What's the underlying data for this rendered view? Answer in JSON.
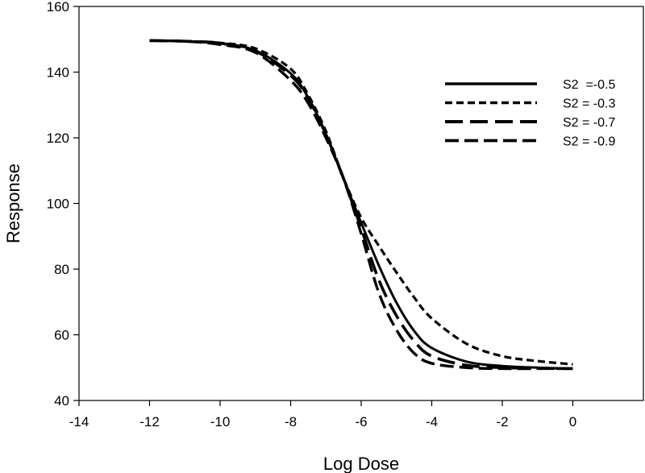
{
  "chart_data": {
    "type": "line",
    "xlabel": "Log Dose",
    "ylabel": "Response",
    "xlim": [
      -14,
      2
    ],
    "ylim": [
      40,
      160
    ],
    "xticks": [
      -14,
      -12,
      -10,
      -8,
      -6,
      -4,
      -2,
      0
    ],
    "yticks": [
      40,
      60,
      80,
      100,
      120,
      140,
      160
    ],
    "grid": false,
    "legend_position": "top-right",
    "series": [
      {
        "name": "S2  =-0.5",
        "x": [
          -12,
          -11,
          -10,
          -9,
          -8,
          -7.5,
          -7,
          -6.5,
          -6,
          -5.5,
          -5,
          -4.5,
          -4,
          -3,
          -2,
          -1,
          0
        ],
        "values": [
          149.6,
          149.4,
          148.7,
          146.6,
          139.6,
          132.2,
          121.2,
          107.4,
          94.1,
          81.1,
          69.8,
          61.2,
          56.0,
          51.8,
          50.5,
          50.0,
          49.7
        ]
      },
      {
        "name": "S2 = -0.3",
        "x": [
          -12,
          -11,
          -10,
          -9,
          -8,
          -7.5,
          -7,
          -6.5,
          -6,
          -5.5,
          -5,
          -4.5,
          -4,
          -3,
          -2,
          -1,
          0
        ],
        "values": [
          149.6,
          149.4,
          148.9,
          147.2,
          141.0,
          133.0,
          122.0,
          107.7,
          95.7,
          87.1,
          79.0,
          71.4,
          65.0,
          57.2,
          53.5,
          52.0,
          51.0
        ]
      },
      {
        "name": "S2 = -0.7",
        "x": [
          -12,
          -11,
          -10,
          -9,
          -8,
          -7.5,
          -7,
          -6.5,
          -6,
          -5.5,
          -5,
          -4.5,
          -4,
          -3,
          -2,
          -1,
          0
        ],
        "values": [
          149.6,
          149.4,
          148.8,
          146.4,
          139.0,
          132.0,
          121.0,
          107.6,
          92.4,
          76.7,
          65.8,
          58.1,
          53.5,
          50.7,
          50.0,
          49.8,
          49.7
        ]
      },
      {
        "name": "S2 = -0.9",
        "x": [
          -12,
          -11,
          -10,
          -9,
          -8,
          -7.5,
          -7,
          -6.5,
          -6,
          -5.5,
          -5,
          -4.5,
          -4,
          -3,
          -2,
          -1,
          0
        ],
        "values": [
          149.6,
          149.4,
          148.4,
          146.0,
          137.5,
          130.5,
          120.0,
          107.5,
          90.8,
          72.8,
          61.5,
          54.4,
          51.3,
          50.0,
          49.7,
          49.7,
          49.7
        ]
      }
    ]
  }
}
